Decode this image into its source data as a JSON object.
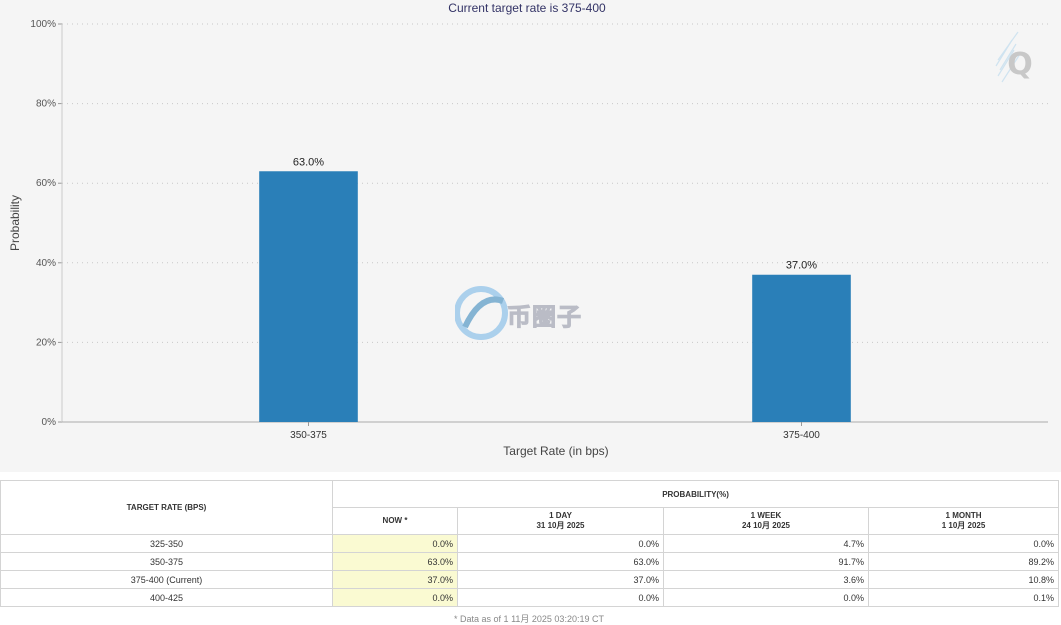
{
  "chart_data": {
    "type": "bar",
    "title": "Current target rate is 375-400",
    "xlabel": "Target Rate (in bps)",
    "ylabel": "Probability",
    "categories": [
      "350-375",
      "375-400"
    ],
    "values": [
      63.0,
      37.0
    ],
    "data_labels": [
      "63.0%",
      "37.0%"
    ],
    "ylim": [
      0,
      100
    ],
    "yticks": [
      "0%",
      "20%",
      "40%",
      "60%",
      "80%",
      "100%"
    ],
    "grid": true,
    "bar_color": "#2a7fb8"
  },
  "watermark": {
    "text": "币圈子"
  },
  "logo": {
    "letter": "Q"
  },
  "table": {
    "header_target": "TARGET RATE (BPS)",
    "header_probability": "PROBABILITY(%)",
    "columns": [
      {
        "label": "NOW *",
        "date": ""
      },
      {
        "label": "1 DAY",
        "date": "31 10月 2025"
      },
      {
        "label": "1 WEEK",
        "date": "24 10月 2025"
      },
      {
        "label": "1 MONTH",
        "date": "1 10月 2025"
      }
    ],
    "rows": [
      {
        "rate": "325-350",
        "values": [
          "0.0%",
          "0.0%",
          "4.7%",
          "0.0%"
        ]
      },
      {
        "rate": "350-375",
        "values": [
          "63.0%",
          "63.0%",
          "91.7%",
          "89.2%"
        ]
      },
      {
        "rate": "375-400 (Current)",
        "values": [
          "37.0%",
          "37.0%",
          "3.6%",
          "10.8%"
        ]
      },
      {
        "rate": "400-425",
        "values": [
          "0.0%",
          "0.0%",
          "0.0%",
          "0.1%"
        ]
      }
    ],
    "footnote": "* Data as of 1 11月 2025 03:20:19 CT"
  }
}
